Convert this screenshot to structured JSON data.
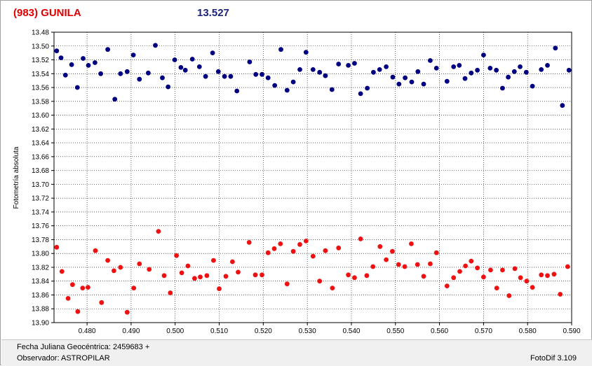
{
  "header": {
    "title": "(983) GUNILA",
    "mean_value": "13.527"
  },
  "footer": {
    "jd_label": "Fecha Juliana Geocéntrica: 2459683 +",
    "observer_label": "Observador: ASTROPILAR",
    "software": "FotoDif 3.109"
  },
  "colors": {
    "title": "#e00000",
    "mean": "#1a237e",
    "comparison_series": "#000080",
    "target_series": "#ee1111",
    "grid": "#000000"
  },
  "chart_data": {
    "type": "scatter",
    "ylabel": "Fotometría absoluta",
    "xlabel": "",
    "xlim": [
      0.4725,
      0.59
    ],
    "ylim": [
      13.9,
      13.48
    ],
    "y_inverted": true,
    "grid": "horizontal and vertical dotted",
    "x_ticks": [
      "0.480",
      "0.490",
      "0.500",
      "0.510",
      "0.520",
      "0.530",
      "0.540",
      "0.550",
      "0.560",
      "0.570",
      "0.580",
      "0.590"
    ],
    "y_ticks": [
      "13.48",
      "13.50",
      "13.52",
      "13.54",
      "13.56",
      "13.58",
      "13.60",
      "13.62",
      "13.64",
      "13.66",
      "13.68",
      "13.70",
      "13.72",
      "13.74",
      "13.76",
      "13.78",
      "13.80",
      "13.82",
      "13.84",
      "13.86",
      "13.88",
      "13.90"
    ],
    "series": [
      {
        "points": [
          [
            0.4731,
            13.507
          ],
          [
            0.4741,
            13.517
          ],
          [
            0.4751,
            13.542
          ],
          [
            0.4765,
            13.527
          ],
          [
            0.4778,
            13.56
          ],
          [
            0.4791,
            13.518
          ],
          [
            0.4803,
            13.528
          ],
          [
            0.4818,
            13.524
          ],
          [
            0.4831,
            13.54
          ],
          [
            0.4847,
            13.505
          ],
          [
            0.4863,
            13.577
          ],
          [
            0.4876,
            13.54
          ],
          [
            0.4891,
            13.537
          ],
          [
            0.4905,
            13.513
          ],
          [
            0.4919,
            13.548
          ],
          [
            0.4939,
            13.539
          ],
          [
            0.4955,
            13.499
          ],
          [
            0.4971,
            13.546
          ],
          [
            0.4984,
            13.559
          ],
          [
            0.4999,
            13.52
          ],
          [
            0.5013,
            13.531
          ],
          [
            0.5023,
            13.535
          ],
          [
            0.5039,
            13.519
          ],
          [
            0.5055,
            13.53
          ],
          [
            0.5069,
            13.544
          ],
          [
            0.5085,
            13.51
          ],
          [
            0.5098,
            13.537
          ],
          [
            0.5112,
            13.544
          ],
          [
            0.5126,
            13.544
          ],
          [
            0.514,
            13.565
          ],
          [
            0.5169,
            13.523
          ],
          [
            0.5183,
            13.541
          ],
          [
            0.5197,
            13.541
          ],
          [
            0.5211,
            13.546
          ],
          [
            0.5226,
            13.557
          ],
          [
            0.524,
            13.505
          ],
          [
            0.5254,
            13.564
          ],
          [
            0.5268,
            13.552
          ],
          [
            0.5283,
            13.534
          ],
          [
            0.5297,
            13.509
          ],
          [
            0.5313,
            13.534
          ],
          [
            0.5328,
            13.538
          ],
          [
            0.5341,
            13.543
          ],
          [
            0.5356,
            13.563
          ],
          [
            0.5371,
            13.526
          ],
          [
            0.5393,
            13.528
          ],
          [
            0.5407,
            13.525
          ],
          [
            0.5421,
            13.569
          ],
          [
            0.5436,
            13.561
          ],
          [
            0.545,
            13.538
          ],
          [
            0.5464,
            13.534
          ],
          [
            0.5479,
            13.53
          ],
          [
            0.5494,
            13.545
          ],
          [
            0.5508,
            13.555
          ],
          [
            0.5522,
            13.546
          ],
          [
            0.5537,
            13.552
          ],
          [
            0.5551,
            13.537
          ],
          [
            0.5564,
            13.555
          ],
          [
            0.5579,
            13.521
          ],
          [
            0.5593,
            13.532
          ],
          [
            0.5617,
            13.551
          ],
          [
            0.5632,
            13.53
          ],
          [
            0.5645,
            13.528
          ],
          [
            0.5658,
            13.547
          ],
          [
            0.5672,
            13.539
          ],
          [
            0.5686,
            13.535
          ],
          [
            0.57,
            13.513
          ],
          [
            0.5715,
            13.532
          ],
          [
            0.5729,
            13.535
          ],
          [
            0.5743,
            13.561
          ],
          [
            0.5756,
            13.545
          ],
          [
            0.577,
            13.537
          ],
          [
            0.5783,
            13.53
          ],
          [
            0.5797,
            13.538
          ],
          [
            0.5811,
            13.558
          ],
          [
            0.5831,
            13.534
          ],
          [
            0.5845,
            13.528
          ],
          [
            0.5863,
            13.503
          ],
          [
            0.5879,
            13.586
          ],
          [
            0.5894,
            13.535
          ]
        ]
      },
      {
        "points": [
          [
            0.4731,
            13.791
          ],
          [
            0.4743,
            13.826
          ],
          [
            0.4757,
            13.865
          ],
          [
            0.4767,
            13.845
          ],
          [
            0.4779,
            13.884
          ],
          [
            0.479,
            13.85
          ],
          [
            0.4802,
            13.849
          ],
          [
            0.4819,
            13.796
          ],
          [
            0.4833,
            13.871
          ],
          [
            0.4847,
            13.81
          ],
          [
            0.4861,
            13.825
          ],
          [
            0.4876,
            13.82
          ],
          [
            0.4891,
            13.885
          ],
          [
            0.4906,
            13.85
          ],
          [
            0.4919,
            13.815
          ],
          [
            0.4941,
            13.823
          ],
          [
            0.4962,
            13.768
          ],
          [
            0.4975,
            13.832
          ],
          [
            0.4989,
            13.857
          ],
          [
            0.5003,
            13.803
          ],
          [
            0.5015,
            13.828
          ],
          [
            0.5029,
            13.818
          ],
          [
            0.5044,
            13.836
          ],
          [
            0.5057,
            13.834
          ],
          [
            0.5072,
            13.832
          ],
          [
            0.5087,
            13.81
          ],
          [
            0.51,
            13.851
          ],
          [
            0.5115,
            13.833
          ],
          [
            0.513,
            13.812
          ],
          [
            0.5143,
            13.827
          ],
          [
            0.5168,
            13.784
          ],
          [
            0.5182,
            13.831
          ],
          [
            0.5197,
            13.831
          ],
          [
            0.5211,
            13.799
          ],
          [
            0.5225,
            13.793
          ],
          [
            0.5239,
            13.786
          ],
          [
            0.5254,
            13.844
          ],
          [
            0.5268,
            13.797
          ],
          [
            0.5283,
            13.787
          ],
          [
            0.5297,
            13.782
          ],
          [
            0.5313,
            13.804
          ],
          [
            0.5328,
            13.84
          ],
          [
            0.5341,
            13.796
          ],
          [
            0.5357,
            13.85
          ],
          [
            0.5371,
            13.792
          ],
          [
            0.5393,
            13.831
          ],
          [
            0.5407,
            13.835
          ],
          [
            0.5421,
            13.779
          ],
          [
            0.5435,
            13.832
          ],
          [
            0.5449,
            13.819
          ],
          [
            0.5465,
            13.79
          ],
          [
            0.5479,
            13.809
          ],
          [
            0.5493,
            13.797
          ],
          [
            0.5507,
            13.816
          ],
          [
            0.5521,
            13.819
          ],
          [
            0.5536,
            13.786
          ],
          [
            0.555,
            13.816
          ],
          [
            0.5564,
            13.833
          ],
          [
            0.5579,
            13.815
          ],
          [
            0.5593,
            13.799
          ],
          [
            0.5617,
            13.847
          ],
          [
            0.5632,
            13.835
          ],
          [
            0.5646,
            13.826
          ],
          [
            0.5659,
            13.818
          ],
          [
            0.5672,
            13.811
          ],
          [
            0.5686,
            13.821
          ],
          [
            0.57,
            13.834
          ],
          [
            0.5716,
            13.824
          ],
          [
            0.573,
            13.85
          ],
          [
            0.5743,
            13.824
          ],
          [
            0.5758,
            13.861
          ],
          [
            0.5771,
            13.822
          ],
          [
            0.5784,
            13.835
          ],
          [
            0.5798,
            13.84
          ],
          [
            0.5811,
            13.849
          ],
          [
            0.5831,
            13.831
          ],
          [
            0.5845,
            13.832
          ],
          [
            0.586,
            13.83
          ],
          [
            0.5874,
            13.859
          ],
          [
            0.5891,
            13.819
          ]
        ]
      }
    ]
  }
}
